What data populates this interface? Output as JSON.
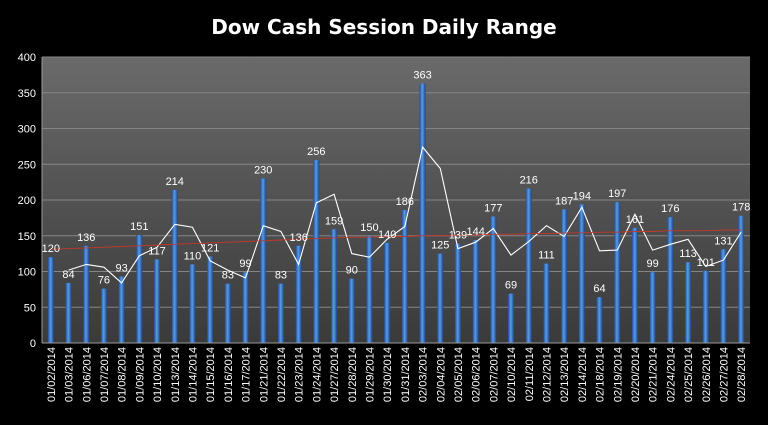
{
  "chart_data": {
    "type": "bar",
    "title": "Dow Cash Session Daily Range",
    "xlabel": "",
    "ylabel": "",
    "ylim": [
      0,
      400
    ],
    "yticks": [
      0,
      50,
      100,
      150,
      200,
      250,
      300,
      350,
      400
    ],
    "grid": true,
    "legend": "none",
    "categories": [
      "01/02/2014",
      "01/03/2014",
      "01/06/2014",
      "01/07/2014",
      "01/08/2014",
      "01/09/2014",
      "01/10/2014",
      "01/13/2014",
      "01/14/2014",
      "01/15/2014",
      "01/16/2014",
      "01/17/2014",
      "01/21/2014",
      "01/22/2014",
      "01/23/2014",
      "01/24/2014",
      "01/27/2014",
      "01/28/2014",
      "01/29/2014",
      "01/30/2014",
      "01/31/2014",
      "02/03/2014",
      "02/04/2014",
      "02/05/2014",
      "02/06/2014",
      "02/07/2014",
      "02/10/2014",
      "02/11/2014",
      "02/12/2014",
      "02/13/2014",
      "02/14/2014",
      "02/18/2014",
      "02/19/2014",
      "02/20/2014",
      "02/21/2014",
      "02/24/2014",
      "02/25/2014",
      "02/26/2014",
      "02/27/2014",
      "02/28/2014"
    ],
    "series": [
      {
        "type": "bar",
        "values": [
          120,
          84,
          136,
          76,
          93,
          151,
          117,
          214,
          110,
          121,
          83,
          99,
          230,
          83,
          136,
          256,
          159,
          90,
          150,
          140,
          186,
          363,
          125,
          139,
          144,
          177,
          69,
          216,
          111,
          187,
          194,
          64,
          197,
          161,
          99,
          176,
          113,
          101,
          131,
          178
        ],
        "color": "#3f7fd0"
      },
      {
        "type": "line",
        "values": [
          null,
          102,
          110,
          106,
          84,
          122,
          134,
          166,
          162,
          115,
          102,
          91,
          164,
          156,
          110,
          196,
          208,
          125,
          120,
          145,
          163,
          274,
          244,
          132,
          141,
          160,
          123,
          142,
          164,
          149,
          190,
          129,
          130,
          180,
          130,
          138,
          145,
          107,
          116,
          155
        ],
        "color": "#ffffff"
      },
      {
        "type": "line",
        "values": [
          131,
          132,
          133,
          134,
          135,
          136,
          137,
          138,
          139,
          140,
          141,
          142,
          143,
          144,
          145,
          146,
          147,
          148,
          148,
          149,
          149,
          150,
          150,
          151,
          151,
          152,
          152,
          153,
          153,
          154,
          154,
          155,
          155,
          156,
          156,
          157,
          157,
          157,
          158,
          158
        ],
        "color": "#c0392b"
      }
    ]
  }
}
